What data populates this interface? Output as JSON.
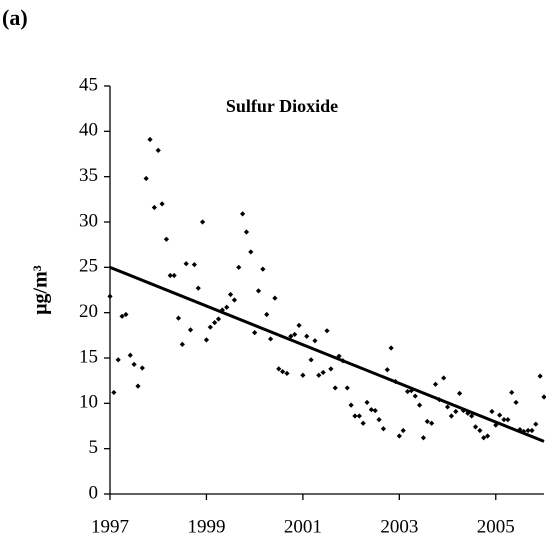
{
  "panel_label": "(a)",
  "chart_data": {
    "type": "scatter",
    "title": "Sulfur Dioxide",
    "y_label": "μg/m³",
    "x": [
      1997.0,
      1997.08,
      1997.17,
      1997.25,
      1997.33,
      1997.42,
      1997.5,
      1997.58,
      1997.67,
      1997.75,
      1997.83,
      1997.92,
      1998.0,
      1998.08,
      1998.17,
      1998.25,
      1998.33,
      1998.42,
      1998.5,
      1998.58,
      1998.67,
      1998.75,
      1998.83,
      1998.92,
      1999.0,
      1999.08,
      1999.17,
      1999.25,
      1999.33,
      1999.42,
      1999.5,
      1999.58,
      1999.67,
      1999.75,
      1999.83,
      1999.92,
      2000.0,
      2000.08,
      2000.17,
      2000.25,
      2000.33,
      2000.42,
      2000.5,
      2000.58,
      2000.67,
      2000.75,
      2000.83,
      2000.92,
      2001.0,
      2001.08,
      2001.17,
      2001.25,
      2001.33,
      2001.42,
      2001.5,
      2001.58,
      2001.67,
      2001.75,
      2001.83,
      2001.92,
      2002.0,
      2002.08,
      2002.17,
      2002.25,
      2002.33,
      2002.42,
      2002.5,
      2002.58,
      2002.67,
      2002.75,
      2002.83,
      2002.92,
      2003.0,
      2003.08,
      2003.17,
      2003.25,
      2003.33,
      2003.42,
      2003.5,
      2003.58,
      2003.67,
      2003.75,
      2003.83,
      2003.92,
      2004.0,
      2004.08,
      2004.17,
      2004.25,
      2004.33,
      2004.42,
      2004.5,
      2004.58,
      2004.67,
      2004.75,
      2004.83,
      2004.92,
      2005.0,
      2005.08,
      2005.17,
      2005.25,
      2005.33,
      2005.42,
      2005.5,
      2005.58,
      2005.67,
      2005.75,
      2005.83,
      2005.92,
      2006.0
    ],
    "values": [
      21.8,
      11.2,
      14.8,
      19.6,
      19.8,
      15.3,
      14.3,
      11.9,
      13.9,
      34.8,
      39.1,
      31.6,
      37.9,
      32.0,
      28.1,
      24.1,
      24.1,
      19.4,
      16.5,
      25.4,
      18.1,
      25.3,
      22.7,
      30.0,
      17.0,
      18.4,
      18.9,
      19.3,
      20.3,
      20.6,
      22.0,
      21.4,
      25.0,
      30.9,
      28.9,
      26.7,
      17.8,
      22.4,
      24.8,
      19.8,
      17.1,
      21.6,
      13.8,
      13.5,
      13.3,
      17.4,
      17.6,
      18.6,
      13.1,
      17.4,
      14.8,
      16.9,
      13.1,
      13.4,
      18.0,
      13.8,
      11.7,
      15.2,
      14.7,
      11.7,
      9.8,
      8.6,
      8.6,
      7.8,
      10.1,
      9.3,
      9.2,
      8.2,
      7.2,
      13.7,
      16.1,
      12.4,
      6.4,
      7.0,
      11.3,
      11.4,
      10.8,
      9.8,
      6.2,
      8.0,
      7.8,
      12.1,
      10.4,
      12.8,
      9.6,
      8.6,
      9.1,
      11.1,
      9.2,
      8.9,
      8.6,
      7.4,
      7.0,
      6.2,
      6.4,
      9.1,
      7.6,
      8.7,
      8.2,
      8.2,
      11.2,
      10.1,
      7.1,
      6.9,
      7.0,
      7.0,
      7.7,
      13.0,
      10.7
    ],
    "color": "#000000",
    "trendline": {
      "x": [
        1997,
        2006
      ],
      "y": [
        25,
        5.8
      ]
    },
    "xlim": [
      1997,
      2006
    ],
    "xticks": [
      1997,
      1999,
      2001,
      2003,
      2005
    ],
    "ylim": [
      0,
      45
    ],
    "yticks": [
      0,
      5,
      10,
      15,
      20,
      25,
      30,
      35,
      40,
      45
    ]
  }
}
